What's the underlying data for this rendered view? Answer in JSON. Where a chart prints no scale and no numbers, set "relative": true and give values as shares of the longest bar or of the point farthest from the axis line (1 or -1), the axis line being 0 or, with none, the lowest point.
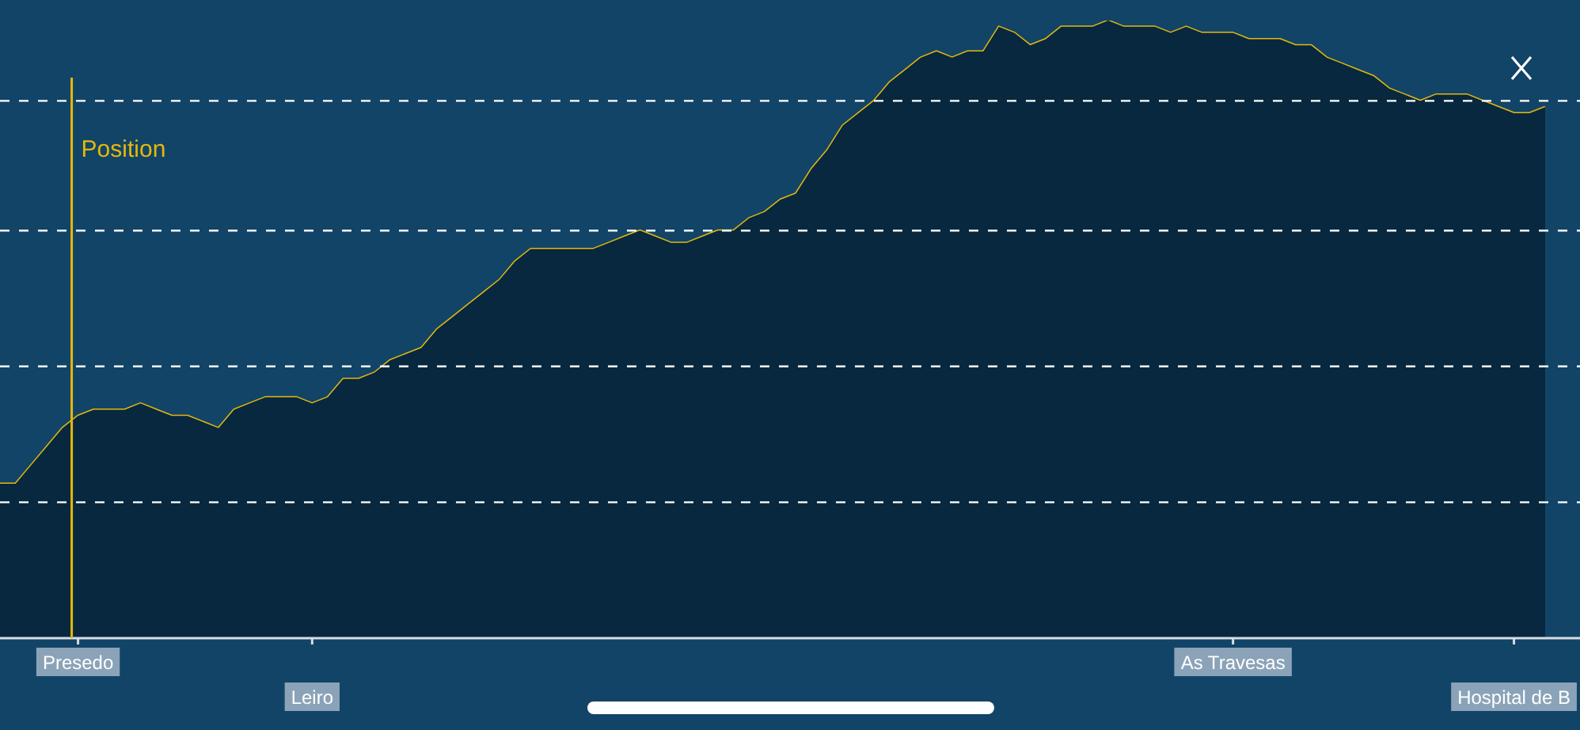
{
  "chart_data": {
    "type": "area",
    "relative": true,
    "categories": [
      null,
      null,
      null,
      null,
      null,
      "Presedo",
      null,
      null,
      null,
      null,
      null,
      null,
      null,
      null,
      null,
      null,
      null,
      null,
      null,
      null,
      "Leiro",
      null,
      null,
      null,
      null,
      null,
      null,
      null,
      null,
      null,
      null,
      null,
      null,
      null,
      null,
      null,
      null,
      null,
      null,
      null,
      null,
      null,
      null,
      null,
      null,
      null,
      null,
      null,
      null,
      null,
      null,
      null,
      null,
      null,
      null,
      null,
      null,
      null,
      null,
      null,
      null,
      null,
      null,
      null,
      null,
      null,
      null,
      null,
      null,
      null,
      null,
      null,
      null,
      null,
      null,
      null,
      null,
      null,
      null,
      "As Travesas",
      null,
      null,
      null,
      null,
      null,
      null,
      null,
      null,
      null,
      null,
      null,
      null,
      null,
      null,
      null,
      null,
      null,
      "Hospital de B",
      null,
      null
    ],
    "series": [
      {
        "color": "#07283f",
        "values": [
          0.25,
          0.25,
          0.28,
          0.31,
          0.34,
          0.36,
          0.37,
          0.37,
          0.37,
          0.38,
          0.37,
          0.36,
          0.36,
          0.35,
          0.34,
          0.37,
          0.38,
          0.39,
          0.39,
          0.39,
          0.38,
          0.39,
          0.42,
          0.42,
          0.43,
          0.45,
          0.46,
          0.47,
          0.5,
          0.52,
          0.54,
          0.56,
          0.58,
          0.61,
          0.63,
          0.63,
          0.63,
          0.63,
          0.63,
          0.64,
          0.65,
          0.66,
          0.65,
          0.64,
          0.64,
          0.65,
          0.66,
          0.66,
          0.68,
          0.69,
          0.71,
          0.72,
          0.76,
          0.79,
          0.83,
          0.85,
          0.87,
          0.9,
          0.92,
          0.94,
          0.95,
          0.94,
          0.95,
          0.95,
          0.99,
          0.98,
          0.96,
          0.97,
          0.99,
          0.99,
          0.99,
          1,
          0.99,
          0.99,
          0.99,
          0.98,
          0.99,
          0.98,
          0.98,
          0.98,
          0.97,
          0.97,
          0.97,
          0.96,
          0.96,
          0.94,
          0.93,
          0.92,
          0.91,
          0.89,
          0.88,
          0.87,
          0.88,
          0.88,
          0.88,
          0.87,
          0.86,
          0.85,
          0.85,
          0.86
        ]
      },
      {
        "type": "line",
        "color": "#e6b80b",
        "values": [
          0.25,
          0.25,
          0.28,
          0.31,
          0.34,
          0.36,
          0.37,
          0.37,
          0.37,
          0.38,
          0.37,
          0.36,
          0.36,
          0.35,
          0.34,
          0.37,
          0.38,
          0.39,
          0.39,
          0.39,
          0.38,
          0.39,
          0.42,
          0.42,
          0.43,
          0.45,
          0.46,
          0.47,
          0.5,
          0.52,
          0.54,
          0.56,
          0.58,
          0.61,
          0.63,
          0.63,
          0.63,
          0.63,
          0.63,
          0.64,
          0.65,
          0.66,
          0.65,
          0.64,
          0.64,
          0.65,
          0.66,
          0.66,
          0.68,
          0.69,
          0.71,
          0.72,
          0.76,
          0.79,
          0.83,
          0.85,
          0.87,
          0.9,
          0.92,
          0.94,
          0.95,
          0.94,
          0.95,
          0.95,
          0.99,
          0.98,
          0.96,
          0.97,
          0.99,
          0.99,
          0.99,
          1,
          0.99,
          0.99,
          0.99,
          0.98,
          0.99,
          0.98,
          0.98,
          0.98,
          0.97,
          0.97,
          0.97,
          0.96,
          0.96,
          0.94,
          0.93,
          0.92,
          0.91,
          0.89,
          0.88,
          0.87,
          0.88,
          0.88,
          0.88,
          0.87,
          0.86,
          0.85,
          0.85,
          0.86
        ]
      }
    ],
    "ref_lines": [
      {
        "axis": "x",
        "value": "Presedo",
        "label": "Position",
        "color": "#e6b80b",
        "line_style": "solid"
      },
      {
        "axis": "y",
        "value": 0.22,
        "color": "#ffffff",
        "line_style": "dashed"
      },
      {
        "axis": "y",
        "value": 0.44,
        "color": "#ffffff",
        "line_style": "dashed"
      },
      {
        "axis": "y",
        "value": 0.66,
        "color": "#ffffff",
        "line_style": "dashed"
      },
      {
        "axis": "y",
        "value": 0.87,
        "color": "#ffffff",
        "line_style": "dashed"
      }
    ],
    "grid": false,
    "legend": false,
    "marker": "none",
    "line_style": "solid"
  }
}
